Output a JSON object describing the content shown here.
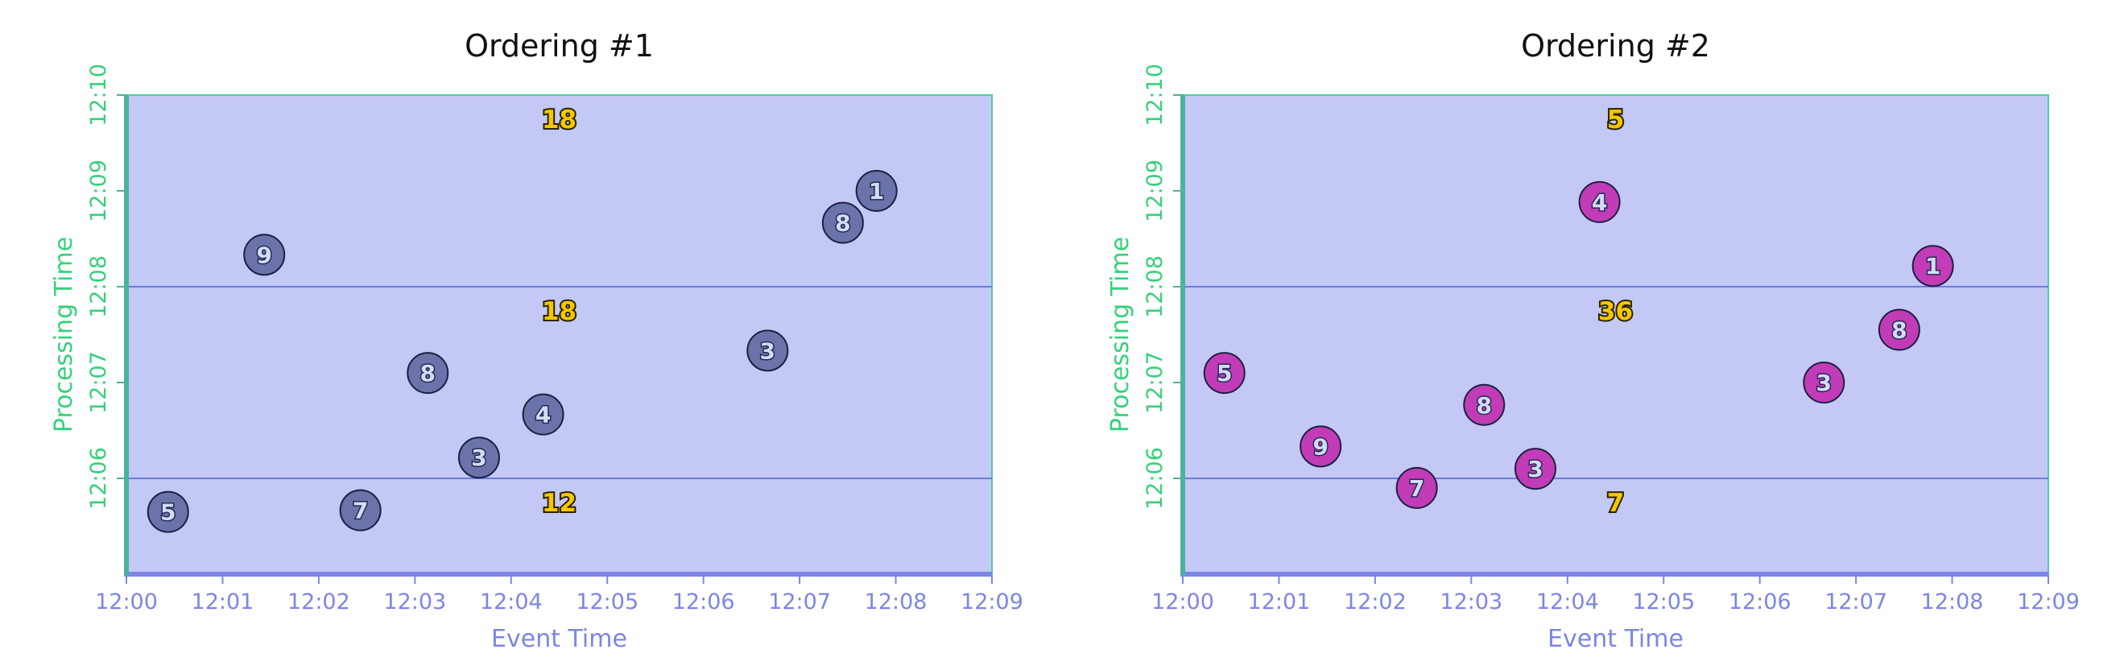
{
  "chart_data": [
    {
      "type": "scatter",
      "title": "Ordering #1",
      "xlabel": "Event Time",
      "ylabel": "Processing Time",
      "x_ticks": [
        "12:00",
        "12:01",
        "12:02",
        "12:03",
        "12:04",
        "12:05",
        "12:06",
        "12:07",
        "12:08",
        "12:09"
      ],
      "y_ticks": [
        "12:06",
        "12:07",
        "12:08",
        "12:09",
        "12:10"
      ],
      "xlim": [
        "12:00",
        "12:09"
      ],
      "ylim": [
        "12:05",
        "12:10"
      ],
      "window_lines": [
        "12:06",
        "12:08"
      ],
      "marker_color": "#6b73aa",
      "points": [
        {
          "label": "5",
          "event_time": "12:00:26",
          "processing_time": "12:05:39"
        },
        {
          "label": "9",
          "event_time": "12:01:26",
          "processing_time": "12:08:20"
        },
        {
          "label": "7",
          "event_time": "12:02:26",
          "processing_time": "12:05:40"
        },
        {
          "label": "8",
          "event_time": "12:03:08",
          "processing_time": "12:07:06"
        },
        {
          "label": "3",
          "event_time": "12:03:40",
          "processing_time": "12:06:13"
        },
        {
          "label": "4",
          "event_time": "12:04:20",
          "processing_time": "12:06:40"
        },
        {
          "label": "3",
          "event_time": "12:06:40",
          "processing_time": "12:07:20"
        },
        {
          "label": "8",
          "event_time": "12:07:27",
          "processing_time": "12:08:40"
        },
        {
          "label": "1",
          "event_time": "12:07:48",
          "processing_time": "12:09:00"
        }
      ],
      "window_sums": [
        {
          "value": "12",
          "processing_time": "12:05:45"
        },
        {
          "value": "18",
          "processing_time": "12:07:45"
        },
        {
          "value": "18",
          "processing_time": "12:09:45"
        }
      ]
    },
    {
      "type": "scatter",
      "title": "Ordering #2",
      "xlabel": "Event Time",
      "ylabel": "Processing Time",
      "x_ticks": [
        "12:00",
        "12:01",
        "12:02",
        "12:03",
        "12:04",
        "12:05",
        "12:06",
        "12:07",
        "12:08",
        "12:09"
      ],
      "y_ticks": [
        "12:06",
        "12:07",
        "12:08",
        "12:09",
        "12:10"
      ],
      "xlim": [
        "12:00",
        "12:09"
      ],
      "ylim": [
        "12:05",
        "12:10"
      ],
      "window_lines": [
        "12:06",
        "12:08"
      ],
      "marker_color": "#c23cb8",
      "points": [
        {
          "label": "5",
          "event_time": "12:00:26",
          "processing_time": "12:07:06"
        },
        {
          "label": "9",
          "event_time": "12:01:26",
          "processing_time": "12:06:20"
        },
        {
          "label": "7",
          "event_time": "12:02:26",
          "processing_time": "12:05:54"
        },
        {
          "label": "8",
          "event_time": "12:03:08",
          "processing_time": "12:06:46"
        },
        {
          "label": "3",
          "event_time": "12:03:40",
          "processing_time": "12:06:06"
        },
        {
          "label": "4",
          "event_time": "12:04:20",
          "processing_time": "12:08:53"
        },
        {
          "label": "3",
          "event_time": "12:06:40",
          "processing_time": "12:07:00"
        },
        {
          "label": "8",
          "event_time": "12:07:27",
          "processing_time": "12:07:33"
        },
        {
          "label": "1",
          "event_time": "12:07:48",
          "processing_time": "12:08:13"
        }
      ],
      "window_sums": [
        {
          "value": "7",
          "processing_time": "12:05:45"
        },
        {
          "value": "36",
          "processing_time": "12:07:45"
        },
        {
          "value": "5",
          "processing_time": "12:09:45"
        }
      ]
    }
  ]
}
